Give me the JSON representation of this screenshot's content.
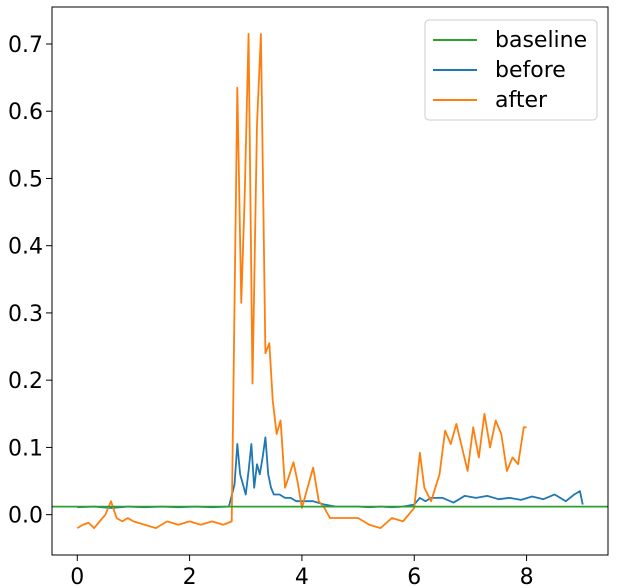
{
  "chart_data": {
    "type": "line",
    "title": "",
    "xlabel": "",
    "ylabel": "",
    "xlim": [
      -0.45,
      9.45
    ],
    "ylim": [
      -0.06,
      0.755
    ],
    "grid": false,
    "legend_position": "top-right",
    "x_ticks": [
      0,
      2,
      4,
      6,
      8
    ],
    "y_ticks": [
      0.0,
      0.1,
      0.2,
      0.3,
      0.4,
      0.5,
      0.6,
      0.7
    ],
    "x_tick_labels": [
      "0",
      "2",
      "4",
      "6",
      "8"
    ],
    "y_tick_labels": [
      "0.0",
      "0.1",
      "0.2",
      "0.3",
      "0.4",
      "0.5",
      "0.6",
      "0.7"
    ],
    "series": [
      {
        "name": "baseline",
        "color": "#2ca02c",
        "x": [
          -0.45,
          9.45
        ],
        "y": [
          0.012,
          0.012
        ]
      },
      {
        "name": "before",
        "color": "#1f77b4",
        "x": [
          0,
          0.3,
          0.6,
          0.9,
          1.2,
          1.5,
          1.8,
          2.1,
          2.4,
          2.7,
          2.8,
          2.85,
          2.9,
          2.95,
          3.0,
          3.05,
          3.1,
          3.15,
          3.2,
          3.25,
          3.3,
          3.35,
          3.4,
          3.45,
          3.5,
          3.6,
          3.7,
          3.8,
          3.9,
          4.0,
          4.2,
          4.4,
          4.6,
          4.8,
          5.0,
          5.2,
          5.4,
          5.6,
          5.8,
          6.0,
          6.1,
          6.2,
          6.3,
          6.5,
          6.7,
          6.9,
          7.1,
          7.3,
          7.5,
          7.7,
          7.9,
          8.1,
          8.3,
          8.5,
          8.7,
          8.85,
          8.95,
          9.0
        ],
        "y": [
          0.011,
          0.012,
          0.01,
          0.012,
          0.011,
          0.012,
          0.011,
          0.012,
          0.011,
          0.012,
          0.045,
          0.105,
          0.06,
          0.045,
          0.03,
          0.065,
          0.105,
          0.04,
          0.075,
          0.06,
          0.085,
          0.115,
          0.06,
          0.04,
          0.03,
          0.03,
          0.025,
          0.025,
          0.02,
          0.02,
          0.02,
          0.015,
          0.012,
          0.012,
          0.012,
          0.011,
          0.012,
          0.011,
          0.012,
          0.015,
          0.025,
          0.02,
          0.025,
          0.025,
          0.018,
          0.028,
          0.025,
          0.028,
          0.023,
          0.025,
          0.022,
          0.027,
          0.023,
          0.03,
          0.02,
          0.03,
          0.035,
          0.015
        ]
      },
      {
        "name": "after",
        "color": "#ff7f0e",
        "x": [
          0,
          0.1,
          0.2,
          0.3,
          0.4,
          0.5,
          0.6,
          0.7,
          0.8,
          0.9,
          1.0,
          1.2,
          1.4,
          1.6,
          1.8,
          2.0,
          2.2,
          2.4,
          2.6,
          2.75,
          2.85,
          2.92,
          2.98,
          3.05,
          3.12,
          3.2,
          3.27,
          3.35,
          3.42,
          3.48,
          3.55,
          3.62,
          3.7,
          3.78,
          3.85,
          3.92,
          4.0,
          4.1,
          4.2,
          4.3,
          4.4,
          4.5,
          4.6,
          4.8,
          5.0,
          5.2,
          5.4,
          5.6,
          5.8,
          6.0,
          6.1,
          6.18,
          6.3,
          6.45,
          6.55,
          6.65,
          6.75,
          6.85,
          6.95,
          7.05,
          7.15,
          7.25,
          7.35,
          7.45,
          7.55,
          7.65,
          7.75,
          7.85,
          7.95,
          8.0
        ],
        "y": [
          -0.02,
          -0.015,
          -0.012,
          -0.02,
          -0.01,
          0.0,
          0.02,
          -0.005,
          -0.01,
          -0.005,
          -0.01,
          -0.015,
          -0.02,
          -0.01,
          -0.015,
          -0.01,
          -0.015,
          -0.01,
          -0.015,
          -0.01,
          0.635,
          0.315,
          0.47,
          0.715,
          0.195,
          0.58,
          0.715,
          0.24,
          0.255,
          0.17,
          0.12,
          0.14,
          0.04,
          0.06,
          0.078,
          0.05,
          0.01,
          0.04,
          0.07,
          0.02,
          0.01,
          -0.005,
          -0.005,
          -0.005,
          -0.005,
          -0.015,
          -0.02,
          -0.005,
          -0.01,
          0.01,
          0.092,
          0.04,
          0.02,
          0.06,
          0.125,
          0.105,
          0.135,
          0.1,
          0.065,
          0.13,
          0.085,
          0.15,
          0.1,
          0.14,
          0.12,
          0.065,
          0.085,
          0.075,
          0.13,
          0.13
        ]
      }
    ]
  }
}
